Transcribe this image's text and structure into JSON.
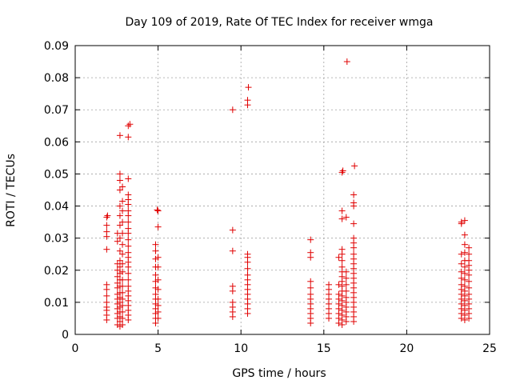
{
  "chart_data": {
    "type": "scatter",
    "title": "Day 109 of 2019, Rate Of TEC Index for receiver wmga",
    "xlabel": "GPS time / hours",
    "ylabel": "ROTI / TECUs",
    "xlim": [
      0,
      25
    ],
    "ylim": [
      0,
      0.09
    ],
    "x_ticks": [
      0,
      5,
      10,
      15,
      20,
      25
    ],
    "y_ticks": [
      0,
      0.01,
      0.02,
      0.03,
      0.04,
      0.05,
      0.06,
      0.07,
      0.08,
      0.09
    ],
    "x_tick_labels": [
      "0",
      "5",
      "10",
      "15",
      "20",
      "25"
    ],
    "y_tick_labels": [
      "0",
      "0.01",
      "0.02",
      "0.03",
      "0.04",
      "0.05",
      "0.06",
      "0.07",
      "0.08",
      "0.09"
    ],
    "grid": true,
    "marker": "+",
    "marker_color": "#e00000",
    "series": [
      {
        "points": [
          [
            1.9,
            0.0045
          ],
          [
            1.9,
            0.006
          ],
          [
            1.9,
            0.0075
          ],
          [
            1.9,
            0.0085
          ],
          [
            1.9,
            0.01
          ],
          [
            1.9,
            0.012
          ],
          [
            1.9,
            0.014
          ],
          [
            1.9,
            0.0155
          ],
          [
            1.9,
            0.0265
          ],
          [
            1.9,
            0.0305
          ],
          [
            1.9,
            0.032
          ],
          [
            1.9,
            0.034
          ],
          [
            1.9,
            0.0365
          ],
          [
            1.95,
            0.037
          ],
          [
            2.55,
            0.003
          ],
          [
            2.55,
            0.005
          ],
          [
            2.55,
            0.0065
          ],
          [
            2.55,
            0.008
          ],
          [
            2.55,
            0.0095
          ],
          [
            2.55,
            0.011
          ],
          [
            2.55,
            0.0125
          ],
          [
            2.55,
            0.0145
          ],
          [
            2.55,
            0.016
          ],
          [
            2.55,
            0.018
          ],
          [
            2.55,
            0.02
          ],
          [
            2.55,
            0.022
          ],
          [
            2.55,
            0.029
          ],
          [
            2.55,
            0.0315
          ],
          [
            2.7,
            0.0025
          ],
          [
            2.7,
            0.004
          ],
          [
            2.7,
            0.0055
          ],
          [
            2.7,
            0.007
          ],
          [
            2.7,
            0.0085
          ],
          [
            2.7,
            0.01
          ],
          [
            2.7,
            0.0115
          ],
          [
            2.7,
            0.013
          ],
          [
            2.7,
            0.015
          ],
          [
            2.7,
            0.017
          ],
          [
            2.7,
            0.019
          ],
          [
            2.7,
            0.021
          ],
          [
            2.7,
            0.023
          ],
          [
            2.7,
            0.026
          ],
          [
            2.7,
            0.03
          ],
          [
            2.7,
            0.034
          ],
          [
            2.7,
            0.037
          ],
          [
            2.7,
            0.04
          ],
          [
            2.7,
            0.045
          ],
          [
            2.7,
            0.048
          ],
          [
            2.7,
            0.05
          ],
          [
            2.7,
            0.062
          ],
          [
            2.85,
            0.003
          ],
          [
            2.85,
            0.005
          ],
          [
            2.85,
            0.007
          ],
          [
            2.85,
            0.009
          ],
          [
            2.85,
            0.011
          ],
          [
            2.85,
            0.013
          ],
          [
            2.85,
            0.015
          ],
          [
            2.85,
            0.017
          ],
          [
            2.85,
            0.0195
          ],
          [
            2.85,
            0.022
          ],
          [
            2.85,
            0.025
          ],
          [
            2.85,
            0.028
          ],
          [
            2.85,
            0.0315
          ],
          [
            2.85,
            0.035
          ],
          [
            2.85,
            0.0385
          ],
          [
            2.85,
            0.0415
          ],
          [
            2.85,
            0.046
          ],
          [
            3.2,
            0.0045
          ],
          [
            3.2,
            0.006
          ],
          [
            3.2,
            0.0075
          ],
          [
            3.2,
            0.009
          ],
          [
            3.2,
            0.0105
          ],
          [
            3.2,
            0.012
          ],
          [
            3.2,
            0.0135
          ],
          [
            3.2,
            0.015
          ],
          [
            3.2,
            0.017
          ],
          [
            3.2,
            0.019
          ],
          [
            3.2,
            0.021
          ],
          [
            3.2,
            0.0225
          ],
          [
            3.2,
            0.024
          ],
          [
            3.2,
            0.0255
          ],
          [
            3.2,
            0.0275
          ],
          [
            3.2,
            0.0295
          ],
          [
            3.2,
            0.0315
          ],
          [
            3.2,
            0.033
          ],
          [
            3.2,
            0.035
          ],
          [
            3.2,
            0.037
          ],
          [
            3.2,
            0.0385
          ],
          [
            3.2,
            0.0405
          ],
          [
            3.2,
            0.042
          ],
          [
            3.2,
            0.0435
          ],
          [
            3.2,
            0.0485
          ],
          [
            3.2,
            0.0615
          ],
          [
            3.2,
            0.065
          ],
          [
            3.3,
            0.0655
          ],
          [
            4.85,
            0.0035
          ],
          [
            4.85,
            0.005
          ],
          [
            4.85,
            0.0065
          ],
          [
            4.85,
            0.008
          ],
          [
            4.85,
            0.0095
          ],
          [
            4.85,
            0.011
          ],
          [
            4.85,
            0.0125
          ],
          [
            4.85,
            0.0145
          ],
          [
            4.85,
            0.0165
          ],
          [
            4.85,
            0.0185
          ],
          [
            4.85,
            0.021
          ],
          [
            4.85,
            0.0235
          ],
          [
            4.85,
            0.026
          ],
          [
            4.85,
            0.028
          ],
          [
            5.0,
            0.005
          ],
          [
            5.0,
            0.007
          ],
          [
            5.0,
            0.009
          ],
          [
            5.0,
            0.011
          ],
          [
            5.0,
            0.014
          ],
          [
            5.0,
            0.017
          ],
          [
            5.0,
            0.021
          ],
          [
            5.0,
            0.024
          ],
          [
            5.0,
            0.0335
          ],
          [
            5.0,
            0.0385
          ],
          [
            4.95,
            0.0388
          ],
          [
            9.5,
            0.0055
          ],
          [
            9.5,
            0.007
          ],
          [
            9.5,
            0.0085
          ],
          [
            9.5,
            0.01
          ],
          [
            9.5,
            0.0135
          ],
          [
            9.5,
            0.015
          ],
          [
            9.5,
            0.026
          ],
          [
            9.5,
            0.0325
          ],
          [
            9.5,
            0.07
          ],
          [
            10.4,
            0.0065
          ],
          [
            10.4,
            0.008
          ],
          [
            10.4,
            0.0095
          ],
          [
            10.4,
            0.011
          ],
          [
            10.4,
            0.0125
          ],
          [
            10.4,
            0.014
          ],
          [
            10.4,
            0.0155
          ],
          [
            10.4,
            0.017
          ],
          [
            10.4,
            0.0185
          ],
          [
            10.4,
            0.0205
          ],
          [
            10.4,
            0.0225
          ],
          [
            10.4,
            0.024
          ],
          [
            10.4,
            0.025
          ],
          [
            10.4,
            0.0715
          ],
          [
            10.4,
            0.073
          ],
          [
            10.45,
            0.077
          ],
          [
            14.2,
            0.0035
          ],
          [
            14.2,
            0.005
          ],
          [
            14.2,
            0.0065
          ],
          [
            14.2,
            0.008
          ],
          [
            14.2,
            0.0095
          ],
          [
            14.2,
            0.011
          ],
          [
            14.2,
            0.0125
          ],
          [
            14.2,
            0.0145
          ],
          [
            14.2,
            0.0165
          ],
          [
            14.2,
            0.024
          ],
          [
            14.2,
            0.0255
          ],
          [
            14.2,
            0.0295
          ],
          [
            15.3,
            0.005
          ],
          [
            15.3,
            0.0065
          ],
          [
            15.3,
            0.008
          ],
          [
            15.3,
            0.0095
          ],
          [
            15.3,
            0.011
          ],
          [
            15.3,
            0.0125
          ],
          [
            15.3,
            0.014
          ],
          [
            15.3,
            0.0155
          ],
          [
            15.9,
            0.0035
          ],
          [
            15.9,
            0.005
          ],
          [
            15.9,
            0.0065
          ],
          [
            15.9,
            0.008
          ],
          [
            15.9,
            0.0095
          ],
          [
            15.9,
            0.011
          ],
          [
            15.9,
            0.0125
          ],
          [
            15.9,
            0.0155
          ],
          [
            15.9,
            0.024
          ],
          [
            16.1,
            0.003
          ],
          [
            16.1,
            0.0045
          ],
          [
            16.1,
            0.006
          ],
          [
            16.1,
            0.0075
          ],
          [
            16.1,
            0.009
          ],
          [
            16.1,
            0.0105
          ],
          [
            16.1,
            0.012
          ],
          [
            16.1,
            0.0135
          ],
          [
            16.1,
            0.015
          ],
          [
            16.1,
            0.0165
          ],
          [
            16.1,
            0.018
          ],
          [
            16.1,
            0.0195
          ],
          [
            16.1,
            0.021
          ],
          [
            16.1,
            0.023
          ],
          [
            16.1,
            0.025
          ],
          [
            16.1,
            0.0265
          ],
          [
            16.1,
            0.036
          ],
          [
            16.1,
            0.0385
          ],
          [
            16.1,
            0.0505
          ],
          [
            16.15,
            0.051
          ],
          [
            16.35,
            0.004
          ],
          [
            16.35,
            0.0055
          ],
          [
            16.35,
            0.007
          ],
          [
            16.35,
            0.0085
          ],
          [
            16.35,
            0.01
          ],
          [
            16.35,
            0.0115
          ],
          [
            16.35,
            0.0135
          ],
          [
            16.35,
            0.0155
          ],
          [
            16.35,
            0.0175
          ],
          [
            16.35,
            0.0195
          ],
          [
            16.35,
            0.0365
          ],
          [
            16.4,
            0.085
          ],
          [
            16.8,
            0.004
          ],
          [
            16.8,
            0.0055
          ],
          [
            16.8,
            0.007
          ],
          [
            16.8,
            0.0085
          ],
          [
            16.8,
            0.01
          ],
          [
            16.8,
            0.0115
          ],
          [
            16.8,
            0.013
          ],
          [
            16.8,
            0.0145
          ],
          [
            16.8,
            0.016
          ],
          [
            16.8,
            0.0175
          ],
          [
            16.8,
            0.019
          ],
          [
            16.8,
            0.0205
          ],
          [
            16.8,
            0.022
          ],
          [
            16.8,
            0.0235
          ],
          [
            16.8,
            0.025
          ],
          [
            16.8,
            0.027
          ],
          [
            16.8,
            0.0285
          ],
          [
            16.8,
            0.03
          ],
          [
            16.8,
            0.0345
          ],
          [
            16.8,
            0.04
          ],
          [
            16.8,
            0.041
          ],
          [
            16.8,
            0.0435
          ],
          [
            16.85,
            0.0525
          ],
          [
            23.3,
            0.005
          ],
          [
            23.3,
            0.0065
          ],
          [
            23.3,
            0.008
          ],
          [
            23.3,
            0.0095
          ],
          [
            23.3,
            0.011
          ],
          [
            23.3,
            0.0125
          ],
          [
            23.3,
            0.014
          ],
          [
            23.3,
            0.0155
          ],
          [
            23.3,
            0.0175
          ],
          [
            23.3,
            0.0195
          ],
          [
            23.3,
            0.022
          ],
          [
            23.3,
            0.025
          ],
          [
            23.3,
            0.0345
          ],
          [
            23.3,
            0.035
          ],
          [
            23.5,
            0.0045
          ],
          [
            23.5,
            0.006
          ],
          [
            23.5,
            0.0075
          ],
          [
            23.5,
            0.009
          ],
          [
            23.5,
            0.0105
          ],
          [
            23.5,
            0.012
          ],
          [
            23.5,
            0.0135
          ],
          [
            23.5,
            0.015
          ],
          [
            23.5,
            0.017
          ],
          [
            23.5,
            0.019
          ],
          [
            23.5,
            0.021
          ],
          [
            23.5,
            0.023
          ],
          [
            23.5,
            0.0255
          ],
          [
            23.5,
            0.028
          ],
          [
            23.5,
            0.031
          ],
          [
            23.5,
            0.0355
          ],
          [
            23.75,
            0.005
          ],
          [
            23.75,
            0.0065
          ],
          [
            23.75,
            0.008
          ],
          [
            23.75,
            0.0095
          ],
          [
            23.75,
            0.011
          ],
          [
            23.75,
            0.0125
          ],
          [
            23.75,
            0.0145
          ],
          [
            23.75,
            0.0165
          ],
          [
            23.75,
            0.0185
          ],
          [
            23.75,
            0.02
          ],
          [
            23.75,
            0.0215
          ],
          [
            23.75,
            0.023
          ],
          [
            23.75,
            0.025
          ],
          [
            23.75,
            0.027
          ]
        ]
      }
    ]
  }
}
